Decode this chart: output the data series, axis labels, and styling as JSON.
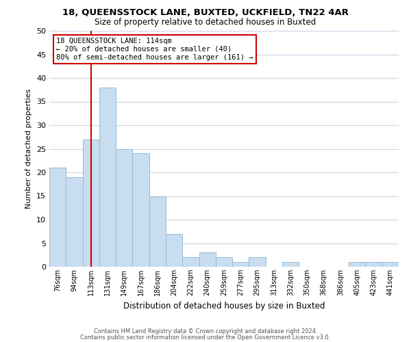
{
  "title1": "18, QUEENSSTOCK LANE, BUXTED, UCKFIELD, TN22 4AR",
  "title2": "Size of property relative to detached houses in Buxted",
  "xlabel": "Distribution of detached houses by size in Buxted",
  "ylabel": "Number of detached properties",
  "bar_color": "#c8ddef",
  "bar_edge_color": "#96bcd8",
  "vline_color": "#cc0000",
  "vline_x_idx": 2,
  "categories": [
    "76sqm",
    "94sqm",
    "113sqm",
    "131sqm",
    "149sqm",
    "167sqm",
    "186sqm",
    "204sqm",
    "222sqm",
    "240sqm",
    "259sqm",
    "277sqm",
    "295sqm",
    "313sqm",
    "332sqm",
    "350sqm",
    "368sqm",
    "386sqm",
    "405sqm",
    "423sqm",
    "441sqm"
  ],
  "values": [
    21,
    19,
    27,
    38,
    25,
    24,
    15,
    7,
    2,
    3,
    2,
    1,
    2,
    0,
    1,
    0,
    0,
    0,
    1,
    1,
    1
  ],
  "ylim": [
    0,
    50
  ],
  "yticks": [
    0,
    5,
    10,
    15,
    20,
    25,
    30,
    35,
    40,
    45,
    50
  ],
  "annotation_line0": "18 QUEENSSTOCK LANE: 114sqm",
  "annotation_line1": "← 20% of detached houses are smaller (40)",
  "annotation_line2": "80% of semi-detached houses are larger (161) →",
  "box_facecolor": "#ffffff",
  "box_edgecolor": "#cc0000",
  "footer1": "Contains HM Land Registry data © Crown copyright and database right 2024.",
  "footer2": "Contains public sector information licensed under the Open Government Licence v3.0.",
  "bg_color": "#ffffff",
  "grid_color": "#c8d8e8"
}
